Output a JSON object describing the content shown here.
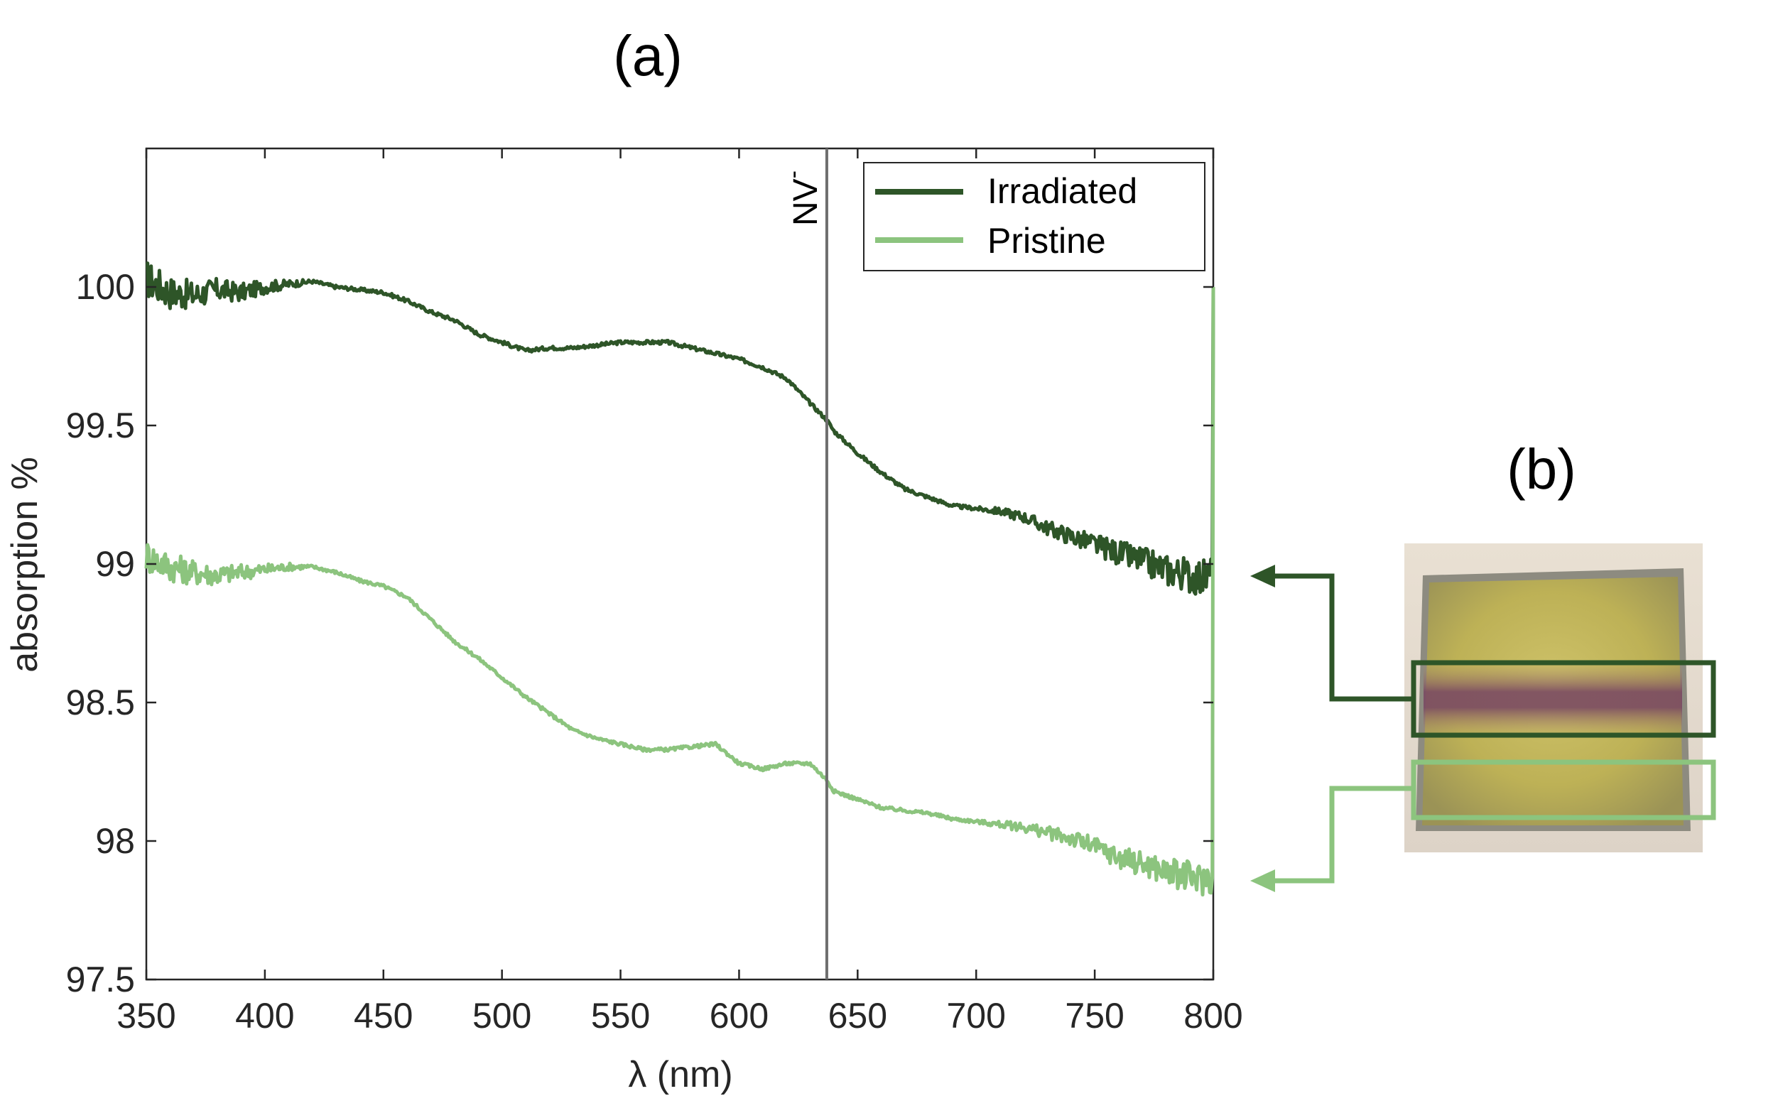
{
  "panel_labels": {
    "a": "(a)",
    "b": "(b)"
  },
  "colors": {
    "irradiated": "#2e5528",
    "pristine": "#8cc47e",
    "marker": "#6e6e6e"
  },
  "chart_data": {
    "type": "line",
    "title": "",
    "xlabel": "λ (nm)",
    "ylabel": "absorption %",
    "xlim": [
      350,
      800
    ],
    "ylim": [
      97.5,
      100.5
    ],
    "xticks": [
      350,
      400,
      450,
      500,
      550,
      600,
      650,
      700,
      750,
      800
    ],
    "yticks": [
      97.5,
      98,
      98.5,
      99,
      99.5,
      100
    ],
    "xtick_labels": [
      "350",
      "400",
      "450",
      "500",
      "550",
      "600",
      "650",
      "700",
      "750",
      "800"
    ],
    "ytick_labels": [
      "97.5",
      "98",
      "98.5",
      "99",
      "99.5",
      "100"
    ],
    "grid": false,
    "legend": "top-right",
    "annotation": {
      "label_main": "NV",
      "label_sup": "-",
      "x": 637
    },
    "series": [
      {
        "name": "Irradiated",
        "x": [
          350,
          360,
          370,
          380,
          390,
          400,
          410,
          420,
          430,
          440,
          450,
          460,
          470,
          480,
          490,
          500,
          510,
          520,
          530,
          540,
          550,
          560,
          570,
          580,
          590,
          600,
          610,
          620,
          630,
          637,
          640,
          650,
          660,
          670,
          680,
          690,
          700,
          710,
          720,
          730,
          740,
          750,
          760,
          770,
          780,
          790,
          795,
          799,
          800
        ],
        "y": [
          100.03,
          99.98,
          99.97,
          99.99,
          99.98,
          100.0,
          100.01,
          100.02,
          100.0,
          99.99,
          99.98,
          99.95,
          99.91,
          99.88,
          99.83,
          99.8,
          99.77,
          99.78,
          99.78,
          99.79,
          99.8,
          99.8,
          99.8,
          99.78,
          99.76,
          99.74,
          99.71,
          99.67,
          99.58,
          99.52,
          99.48,
          99.4,
          99.33,
          99.27,
          99.24,
          99.21,
          99.2,
          99.19,
          99.17,
          99.13,
          99.1,
          99.07,
          99.04,
          99.01,
          98.98,
          98.96,
          98.95,
          98.96,
          100.0
        ],
        "noise": 0.045
      },
      {
        "name": "Pristine",
        "x": [
          350,
          360,
          370,
          380,
          390,
          400,
          410,
          420,
          430,
          440,
          450,
          460,
          470,
          480,
          490,
          500,
          510,
          520,
          530,
          540,
          550,
          560,
          570,
          580,
          590,
          600,
          610,
          620,
          630,
          637,
          640,
          650,
          660,
          670,
          680,
          690,
          700,
          710,
          720,
          730,
          740,
          750,
          760,
          770,
          780,
          790,
          795,
          799,
          800
        ],
        "y": [
          99.03,
          98.99,
          98.97,
          98.96,
          98.97,
          98.98,
          98.99,
          98.99,
          98.97,
          98.94,
          98.92,
          98.88,
          98.8,
          98.72,
          98.66,
          98.59,
          98.52,
          98.46,
          98.4,
          98.37,
          98.35,
          98.33,
          98.33,
          98.34,
          98.35,
          98.28,
          98.26,
          98.28,
          98.28,
          98.22,
          98.18,
          98.15,
          98.12,
          98.11,
          98.1,
          98.08,
          98.07,
          98.06,
          98.05,
          98.03,
          98.01,
          97.98,
          97.94,
          97.92,
          97.89,
          97.87,
          97.86,
          97.87,
          100.0
        ],
        "noise": 0.04
      }
    ]
  }
}
